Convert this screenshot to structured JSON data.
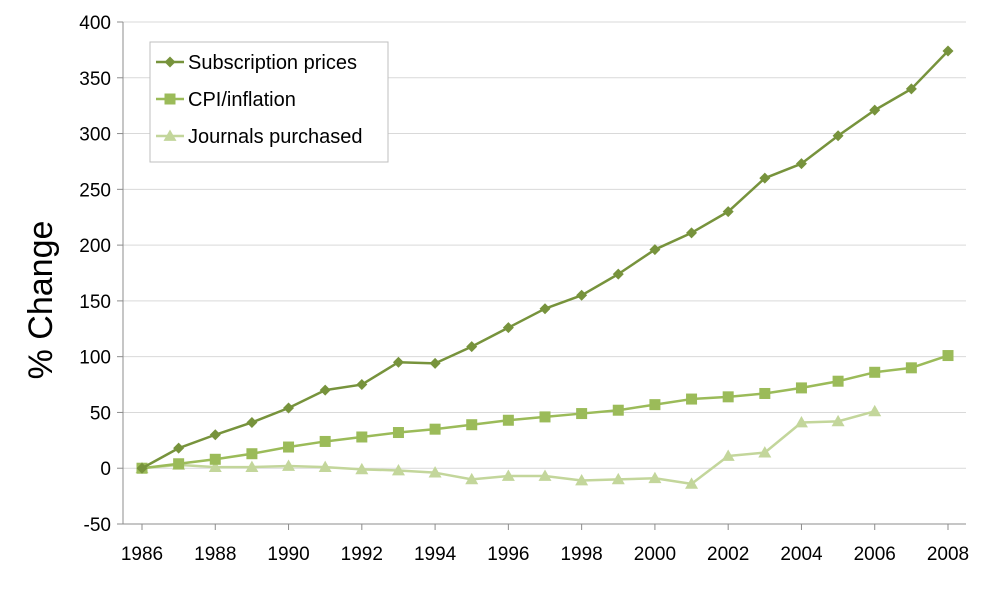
{
  "chart_data": {
    "type": "line",
    "title": "",
    "xlabel": "",
    "ylabel": "% Change",
    "xlim": [
      1986,
      2008
    ],
    "ylim": [
      -50,
      400
    ],
    "xticks": [
      1986,
      1988,
      1990,
      1992,
      1994,
      1996,
      1998,
      2000,
      2002,
      2004,
      2006,
      2008
    ],
    "yticks": [
      -50,
      0,
      50,
      100,
      150,
      200,
      250,
      300,
      350,
      400
    ],
    "grid": true,
    "legend_position": "top-left",
    "series": [
      {
        "name": "Subscription prices",
        "color": "#77933c",
        "marker": "diamond",
        "x": [
          1986,
          1987,
          1988,
          1989,
          1990,
          1991,
          1992,
          1993,
          1994,
          1995,
          1996,
          1997,
          1998,
          1999,
          2000,
          2001,
          2002,
          2003,
          2004,
          2005,
          2006,
          2007,
          2008
        ],
        "y": [
          0,
          18,
          30,
          41,
          54,
          70,
          75,
          95,
          94,
          109,
          126,
          143,
          155,
          174,
          196,
          211,
          230,
          260,
          273,
          298,
          321,
          340,
          374
        ]
      },
      {
        "name": "CPI/inflation",
        "color": "#9bbb59",
        "marker": "square",
        "x": [
          1986,
          1987,
          1988,
          1989,
          1990,
          1991,
          1992,
          1993,
          1994,
          1995,
          1996,
          1997,
          1998,
          1999,
          2000,
          2001,
          2002,
          2003,
          2004,
          2005,
          2006,
          2007,
          2008
        ],
        "y": [
          0,
          4,
          8,
          13,
          19,
          24,
          28,
          32,
          35,
          39,
          43,
          46,
          49,
          52,
          57,
          62,
          64,
          67,
          72,
          78,
          86,
          90,
          101
        ]
      },
      {
        "name": "Journals purchased",
        "color": "#c3d69b",
        "marker": "triangle",
        "x": [
          1986,
          1987,
          1988,
          1989,
          1990,
          1991,
          1992,
          1993,
          1994,
          1995,
          1996,
          1997,
          1998,
          1999,
          2000,
          2001,
          2002,
          2003,
          2004,
          2005,
          2006
        ],
        "y": [
          0,
          3,
          1,
          1,
          2,
          1,
          -1,
          -2,
          -4,
          -10,
          -7,
          -7,
          -11,
          -10,
          -9,
          -14,
          11,
          14,
          41,
          42,
          51
        ]
      }
    ]
  }
}
